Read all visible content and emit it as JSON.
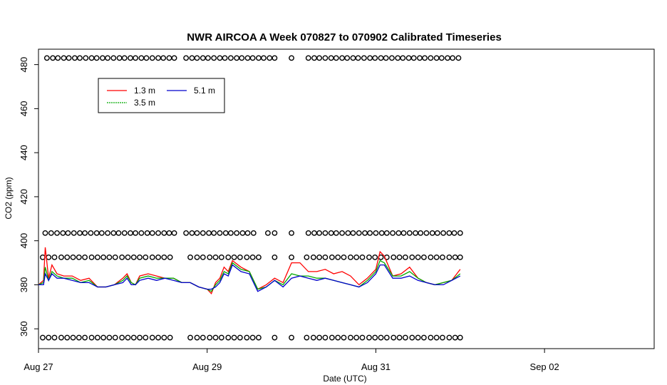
{
  "chart_data": {
    "type": "line",
    "title": "NWR AIRCOA A  Week 070827 to 070902  Calibrated Timeseries",
    "xlabel": "Date (UTC)",
    "ylabel": "CO2 (ppm)",
    "xlim": [
      0,
      7.3
    ],
    "ylim": [
      351,
      487
    ],
    "x_ticks": [
      {
        "x": 0,
        "label": "Aug 27"
      },
      {
        "x": 2,
        "label": "Aug 29"
      },
      {
        "x": 4,
        "label": "Aug 31"
      },
      {
        "x": 6,
        "label": "Sep 02"
      }
    ],
    "y_ticks": [
      360,
      380,
      400,
      420,
      440,
      460,
      480
    ],
    "grid": false,
    "legend_position": "top-left",
    "series": [
      {
        "name": "1.3 m",
        "color": "#ff0000",
        "x": [
          0.0,
          0.06,
          0.08,
          0.12,
          0.16,
          0.22,
          0.3,
          0.4,
          0.5,
          0.6,
          0.7,
          0.8,
          0.9,
          1.0,
          1.05,
          1.1,
          1.15,
          1.2,
          1.3,
          1.4,
          1.5,
          1.6,
          1.7,
          1.8,
          1.9,
          2.0,
          2.05,
          2.1,
          2.15,
          2.2,
          2.25,
          2.3,
          2.4,
          2.5,
          2.6,
          2.7,
          2.8,
          2.9,
          3.0,
          3.1,
          3.2,
          3.3,
          3.4,
          3.5,
          3.6,
          3.7,
          3.8,
          3.9,
          4.0,
          4.05,
          4.1,
          4.2,
          4.3,
          4.4,
          4.5,
          4.6,
          4.7,
          4.8,
          4.9,
          5.0
        ],
        "values": [
          380,
          382,
          397,
          383,
          389,
          385,
          384,
          384,
          382,
          383,
          379,
          379,
          380,
          383,
          385,
          381,
          380,
          384,
          385,
          384,
          383,
          383,
          381,
          381,
          379,
          378,
          376,
          381,
          383,
          388,
          386,
          391,
          388,
          386,
          378,
          380,
          383,
          381,
          390,
          390,
          386,
          386,
          387,
          385,
          386,
          384,
          380,
          383,
          387,
          395,
          393,
          384,
          385,
          388,
          383,
          381,
          380,
          381,
          382,
          387
        ]
      },
      {
        "name": "3.5 m",
        "color": "#00aa00",
        "x": [
          0.0,
          0.06,
          0.08,
          0.12,
          0.16,
          0.22,
          0.3,
          0.4,
          0.5,
          0.6,
          0.7,
          0.8,
          0.9,
          1.0,
          1.05,
          1.1,
          1.15,
          1.2,
          1.3,
          1.4,
          1.5,
          1.6,
          1.7,
          1.8,
          1.9,
          2.0,
          2.05,
          2.1,
          2.15,
          2.2,
          2.25,
          2.3,
          2.4,
          2.5,
          2.6,
          2.7,
          2.8,
          2.9,
          3.0,
          3.1,
          3.2,
          3.3,
          3.4,
          3.5,
          3.6,
          3.7,
          3.8,
          3.9,
          4.0,
          4.05,
          4.1,
          4.2,
          4.3,
          4.4,
          4.5,
          4.6,
          4.7,
          4.8,
          4.9,
          5.0
        ],
        "values": [
          380,
          381,
          388,
          382,
          386,
          384,
          383,
          383,
          381,
          382,
          379,
          379,
          380,
          382,
          384,
          381,
          380,
          383,
          384,
          383,
          383,
          383,
          381,
          381,
          379,
          378,
          377,
          380,
          382,
          386,
          385,
          390,
          387,
          386,
          378,
          379,
          382,
          380,
          385,
          384,
          384,
          383,
          383,
          382,
          381,
          380,
          379,
          382,
          386,
          391,
          390,
          384,
          384,
          386,
          383,
          381,
          380,
          381,
          382,
          385
        ]
      },
      {
        "name": "5.1 m",
        "color": "#0000cc",
        "x": [
          0.0,
          0.06,
          0.08,
          0.12,
          0.16,
          0.22,
          0.3,
          0.4,
          0.5,
          0.6,
          0.7,
          0.8,
          0.9,
          1.0,
          1.05,
          1.1,
          1.15,
          1.2,
          1.3,
          1.4,
          1.5,
          1.6,
          1.7,
          1.8,
          1.9,
          2.0,
          2.05,
          2.1,
          2.15,
          2.2,
          2.25,
          2.3,
          2.4,
          2.5,
          2.6,
          2.7,
          2.8,
          2.9,
          3.0,
          3.1,
          3.2,
          3.3,
          3.4,
          3.5,
          3.6,
          3.7,
          3.8,
          3.9,
          4.0,
          4.05,
          4.1,
          4.2,
          4.3,
          4.4,
          4.5,
          4.6,
          4.7,
          4.8,
          4.9,
          5.0
        ],
        "values": [
          380,
          380,
          385,
          382,
          385,
          383,
          383,
          382,
          381,
          381,
          379,
          379,
          380,
          381,
          383,
          380,
          380,
          382,
          383,
          382,
          383,
          382,
          381,
          381,
          379,
          378,
          378,
          379,
          381,
          385,
          384,
          389,
          386,
          385,
          377,
          379,
          382,
          379,
          383,
          384,
          383,
          382,
          383,
          382,
          381,
          380,
          379,
          381,
          385,
          389,
          389,
          383,
          383,
          384,
          382,
          381,
          380,
          380,
          382,
          384
        ]
      }
    ],
    "flag_rows": [
      {
        "y": 483,
        "x": [
          0.1,
          0.17,
          0.23,
          0.3,
          0.36,
          0.43,
          0.49,
          0.56,
          0.63,
          0.69,
          0.76,
          0.82,
          0.89,
          0.96,
          1.02,
          1.09,
          1.15,
          1.22,
          1.28,
          1.35,
          1.42,
          1.48,
          1.55,
          1.61,
          1.75,
          1.82,
          1.88,
          1.95,
          2.01,
          2.08,
          2.15,
          2.21,
          2.28,
          2.35,
          2.41,
          2.48,
          2.54,
          2.61,
          2.67,
          2.74,
          2.8,
          3.0,
          3.2,
          3.27,
          3.33,
          3.4,
          3.47,
          3.53,
          3.6,
          3.66,
          3.73,
          3.79,
          3.86,
          3.93,
          3.99,
          4.06,
          4.12,
          4.19,
          4.26,
          4.32,
          4.39,
          4.45,
          4.52,
          4.58,
          4.65,
          4.72,
          4.78,
          4.85,
          4.91,
          4.98
        ]
      },
      {
        "y": 403.5,
        "x": [
          0.08,
          0.15,
          0.22,
          0.29,
          0.35,
          0.42,
          0.49,
          0.55,
          0.62,
          0.69,
          0.75,
          0.82,
          0.89,
          0.95,
          1.02,
          1.09,
          1.15,
          1.22,
          1.29,
          1.35,
          1.42,
          1.49,
          1.55,
          1.61,
          1.75,
          1.82,
          1.88,
          1.95,
          2.02,
          2.08,
          2.15,
          2.22,
          2.28,
          2.35,
          2.42,
          2.48,
          2.55,
          2.72,
          2.8,
          3.0,
          3.2,
          3.27,
          3.33,
          3.4,
          3.47,
          3.53,
          3.6,
          3.67,
          3.73,
          3.8,
          3.87,
          3.93,
          4.0,
          4.07,
          4.13,
          4.2,
          4.27,
          4.33,
          4.4,
          4.47,
          4.53,
          4.6,
          4.67,
          4.73,
          4.8,
          4.87,
          4.93,
          5.0
        ]
      },
      {
        "y": 392.5,
        "x": [
          0.05,
          0.12,
          0.19,
          0.27,
          0.34,
          0.41,
          0.48,
          0.55,
          0.63,
          0.7,
          0.77,
          0.84,
          0.91,
          0.99,
          1.06,
          1.13,
          1.2,
          1.27,
          1.35,
          1.42,
          1.49,
          1.56,
          1.8,
          1.88,
          1.95,
          2.03,
          2.1,
          2.17,
          2.25,
          2.32,
          2.39,
          2.47,
          2.54,
          2.61,
          2.8,
          3.0,
          3.18,
          3.26,
          3.33,
          3.4,
          3.48,
          3.55,
          3.62,
          3.7,
          3.77,
          3.84,
          3.92,
          3.99,
          4.06,
          4.13,
          4.21,
          4.28,
          4.35,
          4.43,
          4.5,
          4.57,
          4.65,
          4.72,
          4.79,
          4.87,
          4.94,
          5.0
        ]
      },
      {
        "y": 356,
        "x": [
          0.05,
          0.12,
          0.19,
          0.27,
          0.34,
          0.41,
          0.48,
          0.55,
          0.63,
          0.7,
          0.77,
          0.84,
          0.91,
          0.99,
          1.06,
          1.13,
          1.2,
          1.27,
          1.35,
          1.42,
          1.49,
          1.56,
          1.8,
          1.88,
          1.95,
          2.03,
          2.1,
          2.17,
          2.25,
          2.32,
          2.39,
          2.47,
          2.54,
          2.61,
          2.8,
          3.0,
          3.18,
          3.26,
          3.33,
          3.4,
          3.48,
          3.55,
          3.62,
          3.7,
          3.77,
          3.84,
          3.92,
          3.99,
          4.06,
          4.13,
          4.21,
          4.28,
          4.35,
          4.43,
          4.5,
          4.57,
          4.65,
          4.72,
          4.79,
          4.87,
          4.94,
          5.0
        ]
      }
    ]
  }
}
